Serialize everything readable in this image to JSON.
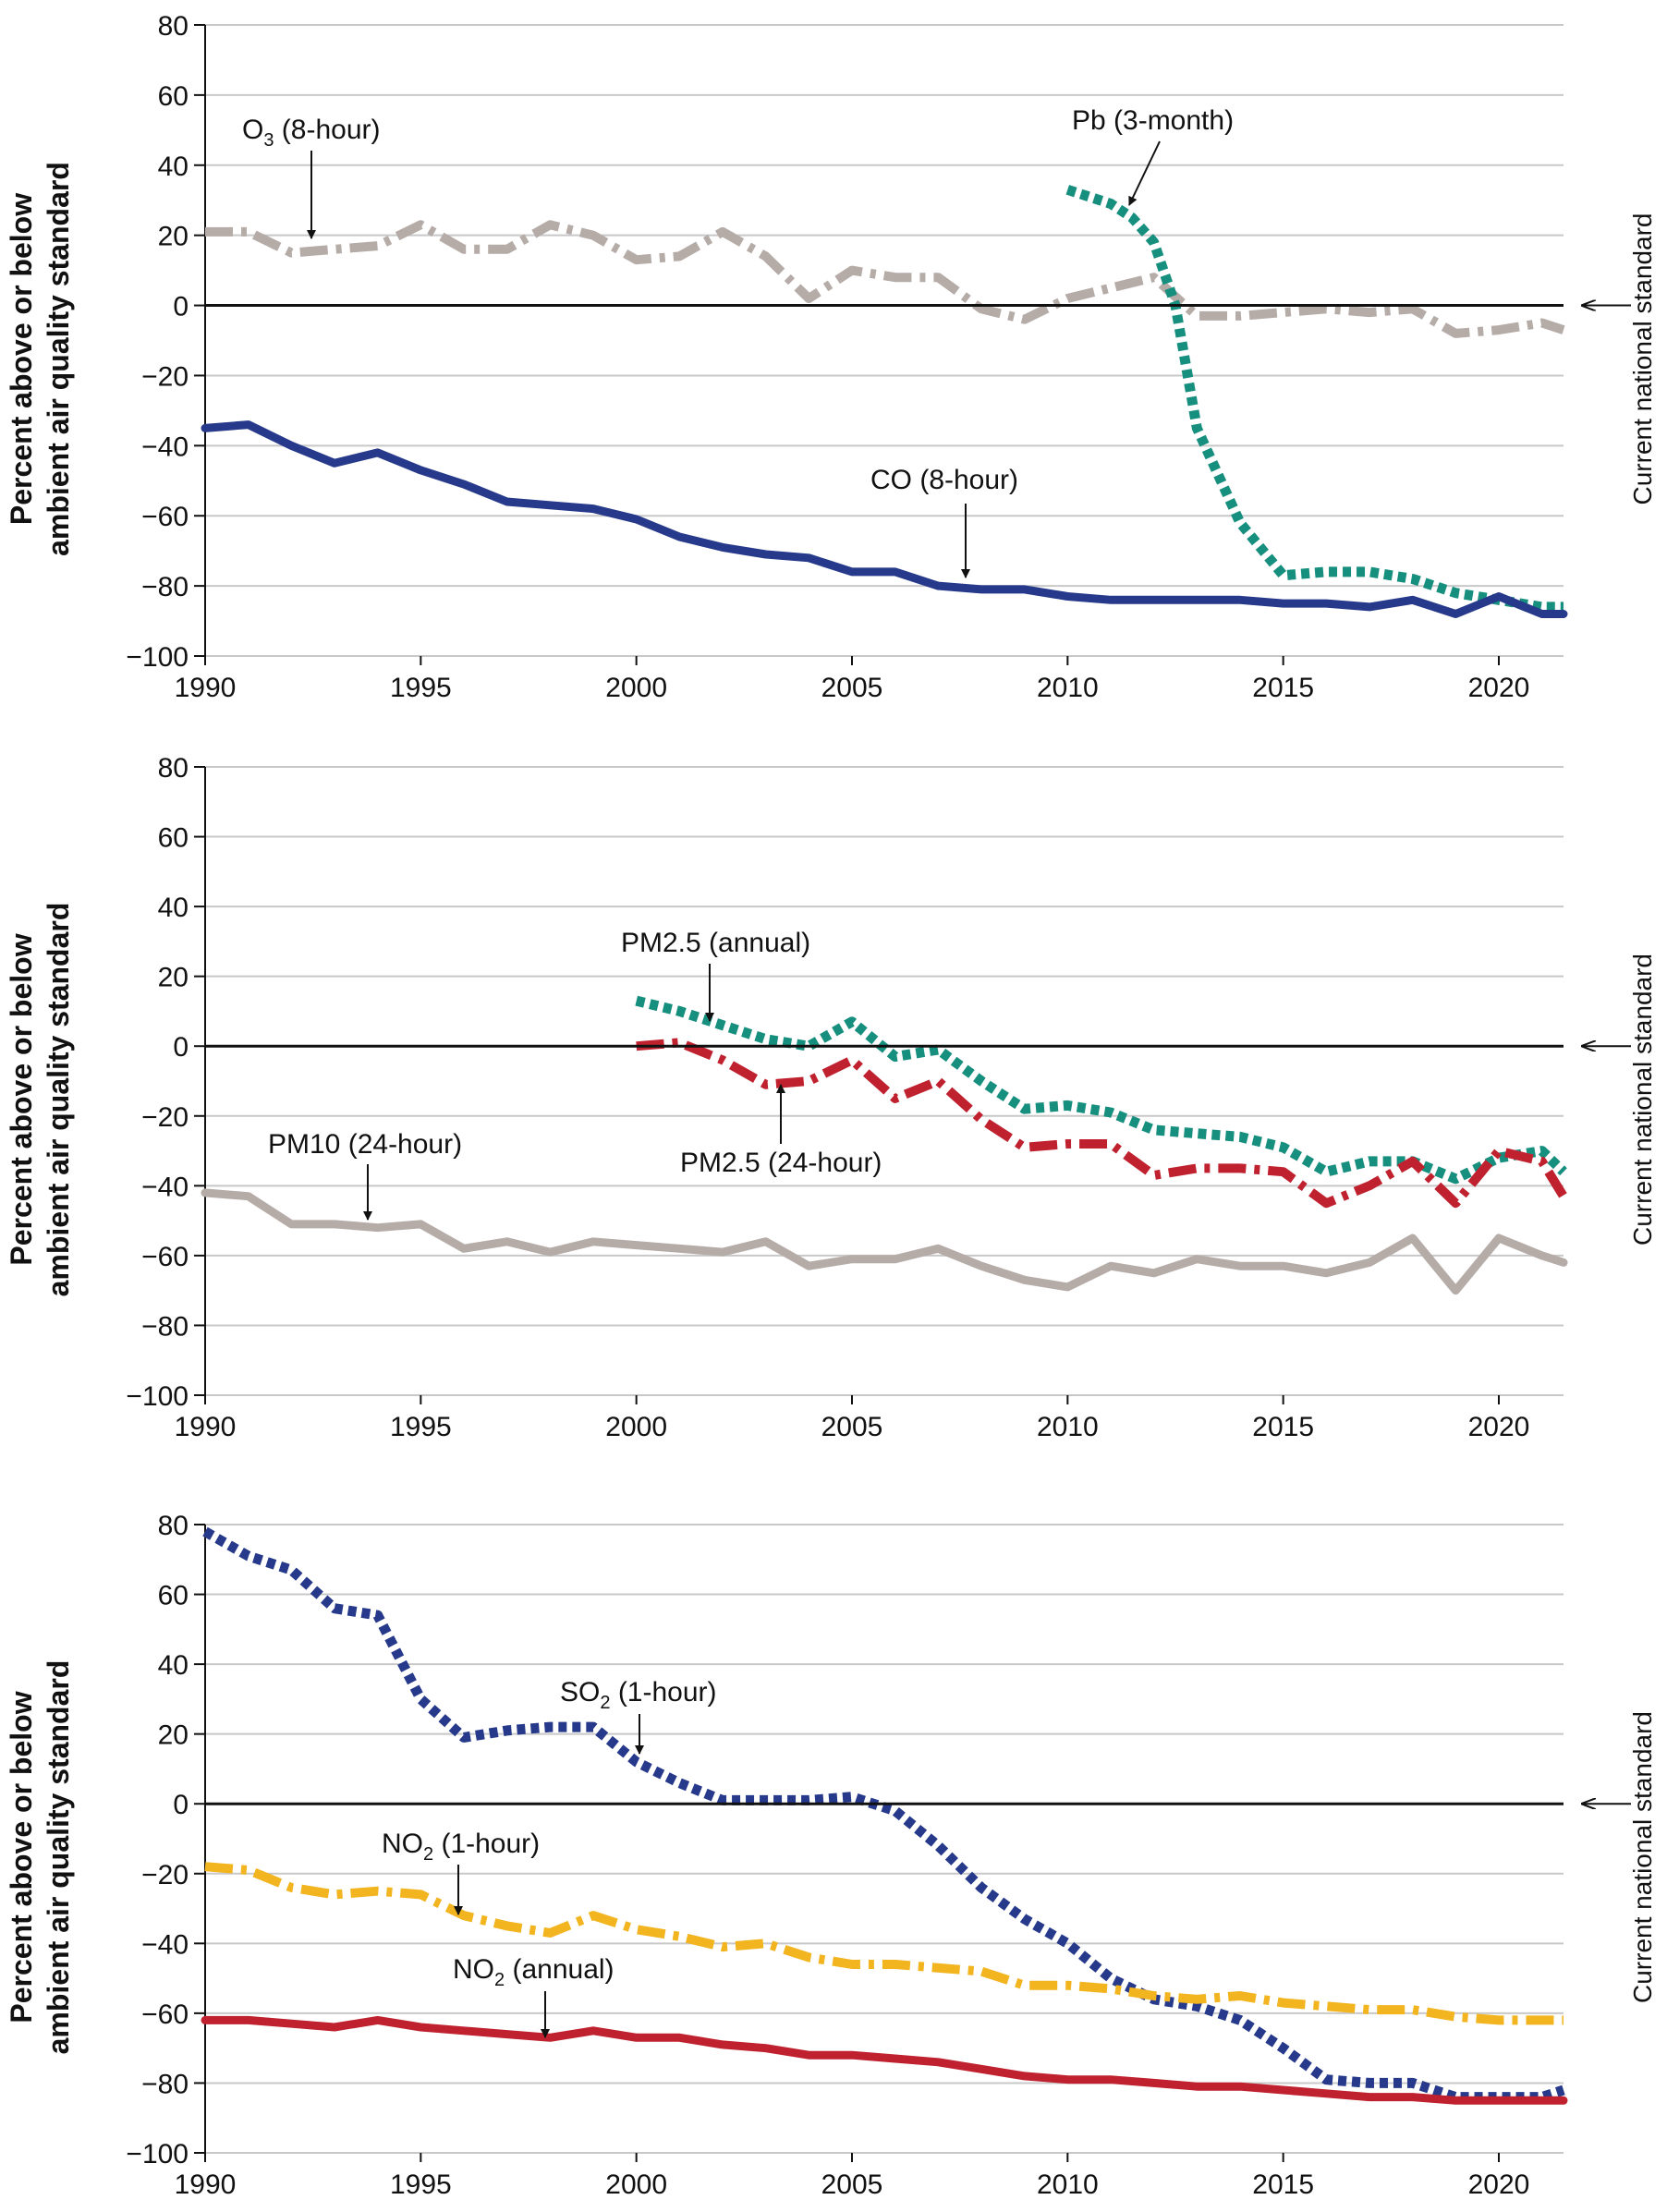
{
  "y_axis_label": [
    "Percent above or below",
    "ambient air quality standard"
  ],
  "standard_label": "Current national standard",
  "chart_data": [
    {
      "type": "line",
      "xlim": [
        1990,
        2021.5
      ],
      "ylim": [
        -100,
        80
      ],
      "x_ticks": [
        1990,
        1995,
        2000,
        2005,
        2010,
        2015,
        2020
      ],
      "y_ticks": [
        80,
        60,
        40,
        20,
        0,
        -20,
        -40,
        -60,
        -80,
        -100
      ],
      "grid": "horizontal",
      "reference_line": 0,
      "series": [
        {
          "id": "o3",
          "style": "dashdot",
          "color": "#b5aca8",
          "x": [
            1990,
            1991,
            1992,
            1993,
            1994,
            1995,
            1996,
            1997,
            1998,
            1999,
            2000,
            2001,
            2002,
            2003,
            2004,
            2005,
            2006,
            2007,
            2008,
            2009,
            2010,
            2011,
            2012,
            2013,
            2014,
            2015,
            2016,
            2017,
            2018,
            2019,
            2020,
            2021,
            2021.5
          ],
          "values": [
            21,
            21,
            15,
            16,
            17,
            23,
            16,
            16,
            23,
            20,
            13,
            14,
            21,
            14,
            2,
            10,
            8,
            8,
            -1,
            -4,
            2,
            5,
            8,
            -3,
            -3,
            -2,
            -1,
            -2,
            -1,
            -8,
            -7,
            -5,
            -7
          ]
        },
        {
          "id": "pb",
          "style": "dotted",
          "color": "#178f7e",
          "x": [
            2010,
            2011,
            2011.5,
            2012,
            2012.5,
            2013,
            2014,
            2015,
            2016,
            2017,
            2018,
            2019,
            2020,
            2021,
            2021.5
          ],
          "values": [
            33,
            29,
            25,
            18,
            0,
            -35,
            -62,
            -77,
            -76,
            -76,
            -78,
            -82,
            -84,
            -86,
            -86
          ]
        },
        {
          "id": "co",
          "style": "solid",
          "color": "#26398a",
          "x": [
            1990,
            1991,
            1992,
            1993,
            1994,
            1995,
            1996,
            1997,
            1998,
            1999,
            2000,
            2001,
            2002,
            2003,
            2004,
            2005,
            2006,
            2007,
            2008,
            2009,
            2010,
            2011,
            2012,
            2013,
            2014,
            2015,
            2016,
            2017,
            2018,
            2019,
            2020,
            2021,
            2021.5
          ],
          "values": [
            -35,
            -34,
            -40,
            -45,
            -42,
            -47,
            -51,
            -56,
            -57,
            -58,
            -61,
            -66,
            -69,
            -71,
            -72,
            -76,
            -76,
            -80,
            -81,
            -81,
            -83,
            -84,
            -84,
            -84,
            -84,
            -85,
            -85,
            -86,
            -84,
            -88,
            -83,
            -88,
            -88
          ]
        }
      ],
      "annotations": [
        {
          "text": "O",
          "sub": "3",
          "rest": " (8-hour)",
          "ann_id": "o3"
        },
        {
          "text": "Pb (3-month)",
          "ann_id": "pb"
        },
        {
          "text": "CO (8-hour)",
          "ann_id": "co"
        }
      ]
    },
    {
      "type": "line",
      "xlim": [
        1990,
        2021.5
      ],
      "ylim": [
        -100,
        80
      ],
      "x_ticks": [
        1990,
        1995,
        2000,
        2005,
        2010,
        2015,
        2020
      ],
      "y_ticks": [
        80,
        60,
        40,
        20,
        0,
        -20,
        -40,
        -60,
        -80,
        -100
      ],
      "grid": "horizontal",
      "reference_line": 0,
      "series": [
        {
          "id": "pm25a",
          "style": "dotted",
          "color": "#178f7e",
          "x": [
            2000,
            2001,
            2002,
            2003,
            2004,
            2005,
            2006,
            2007,
            2008,
            2009,
            2010,
            2011,
            2012,
            2013,
            2014,
            2015,
            2016,
            2017,
            2018,
            2019,
            2020,
            2021,
            2021.5
          ],
          "values": [
            13,
            10,
            6,
            2,
            0,
            7,
            -3,
            -1,
            -10,
            -18,
            -17,
            -19,
            -24,
            -25,
            -26,
            -29,
            -36,
            -33,
            -33,
            -38,
            -32,
            -30,
            -36
          ]
        },
        {
          "id": "pm25d",
          "style": "dashdot",
          "color": "#c0212f",
          "x": [
            2000,
            2001,
            2002,
            2003,
            2004,
            2005,
            2006,
            2007,
            2008,
            2009,
            2010,
            2011,
            2012,
            2013,
            2014,
            2015,
            2016,
            2017,
            2018,
            2019,
            2020,
            2021,
            2021.5
          ],
          "values": [
            0,
            1,
            -4,
            -11,
            -10,
            -4,
            -15,
            -10,
            -21,
            -29,
            -28,
            -28,
            -37,
            -35,
            -35,
            -36,
            -45,
            -40,
            -33,
            -45,
            -30,
            -33,
            -43
          ]
        },
        {
          "id": "pm10",
          "style": "solid",
          "color": "#b5aca8",
          "x": [
            1990,
            1991,
            1992,
            1993,
            1994,
            1995,
            1996,
            1997,
            1998,
            1999,
            2000,
            2001,
            2002,
            2003,
            2004,
            2005,
            2006,
            2007,
            2008,
            2009,
            2010,
            2011,
            2012,
            2013,
            2014,
            2015,
            2016,
            2017,
            2018,
            2019,
            2020,
            2021,
            2021.5
          ],
          "values": [
            -42,
            -43,
            -51,
            -51,
            -52,
            -51,
            -58,
            -56,
            -59,
            -56,
            -57,
            -58,
            -59,
            -56,
            -63,
            -61,
            -61,
            -58,
            -63,
            -67,
            -69,
            -63,
            -65,
            -61,
            -63,
            -63,
            -65,
            -62,
            -55,
            -70,
            -55,
            -60,
            -62
          ]
        }
      ],
      "annotations": [
        {
          "text": "PM2.5 (annual)",
          "ann_id": "pm25a"
        },
        {
          "text": "PM2.5 (24-hour)",
          "ann_id": "pm25d"
        },
        {
          "text": "PM10 (24-hour)",
          "ann_id": "pm10"
        }
      ]
    },
    {
      "type": "line",
      "xlim": [
        1990,
        2021.5
      ],
      "ylim": [
        -100,
        80
      ],
      "x_ticks": [
        1990,
        1995,
        2000,
        2005,
        2010,
        2015,
        2020
      ],
      "y_ticks": [
        80,
        60,
        40,
        20,
        0,
        -20,
        -40,
        -60,
        -80,
        -100
      ],
      "grid": "horizontal",
      "reference_line": 0,
      "series": [
        {
          "id": "so2",
          "style": "dotted",
          "color": "#26398a",
          "x": [
            1990,
            1991,
            1992,
            1993,
            1994,
            1995,
            1996,
            1997,
            1998,
            1999,
            2000,
            2001,
            2002,
            2003,
            2004,
            2005,
            2006,
            2007,
            2008,
            2009,
            2010,
            2011,
            2012,
            2013,
            2014,
            2015,
            2016,
            2017,
            2018,
            2019,
            2020,
            2021,
            2021.5
          ],
          "values": [
            78,
            71,
            67,
            56,
            54,
            30,
            19,
            21,
            22,
            22,
            12,
            6,
            1,
            1,
            1,
            2,
            -2,
            -12,
            -24,
            -33,
            -40,
            -50,
            -56,
            -58,
            -62,
            -70,
            -79,
            -80,
            -80,
            -84,
            -84,
            -84,
            -82
          ]
        },
        {
          "id": "no2h",
          "style": "dashdot",
          "color": "#f2b41f",
          "x": [
            1990,
            1991,
            1992,
            1993,
            1994,
            1995,
            1996,
            1997,
            1998,
            1999,
            2000,
            2001,
            2002,
            2003,
            2004,
            2005,
            2006,
            2007,
            2008,
            2009,
            2010,
            2011,
            2012,
            2013,
            2014,
            2015,
            2016,
            2017,
            2018,
            2019,
            2020,
            2021,
            2021.5
          ],
          "values": [
            -18,
            -19,
            -24,
            -26,
            -25,
            -26,
            -32,
            -35,
            -37,
            -32,
            -36,
            -38,
            -41,
            -40,
            -44,
            -46,
            -46,
            -47,
            -48,
            -52,
            -52,
            -53,
            -55,
            -56,
            -55,
            -57,
            -58,
            -59,
            -59,
            -61,
            -62,
            -62,
            -62
          ]
        },
        {
          "id": "no2a",
          "style": "solid",
          "color": "#c0212f",
          "x": [
            1990,
            1991,
            1992,
            1993,
            1994,
            1995,
            1996,
            1997,
            1998,
            1999,
            2000,
            2001,
            2002,
            2003,
            2004,
            2005,
            2006,
            2007,
            2008,
            2009,
            2010,
            2011,
            2012,
            2013,
            2014,
            2015,
            2016,
            2017,
            2018,
            2019,
            2020,
            2021,
            2021.5
          ],
          "values": [
            -62,
            -62,
            -63,
            -64,
            -62,
            -64,
            -65,
            -66,
            -67,
            -65,
            -67,
            -67,
            -69,
            -70,
            -72,
            -72,
            -73,
            -74,
            -76,
            -78,
            -79,
            -79,
            -80,
            -81,
            -81,
            -82,
            -83,
            -84,
            -84,
            -85,
            -85,
            -85,
            -85
          ]
        }
      ],
      "annotations": [
        {
          "text": "SO",
          "sub": "2",
          "rest": " (1-hour)",
          "ann_id": "so2"
        },
        {
          "text": "NO",
          "sub": "2",
          "rest": " (1-hour)",
          "ann_id": "no2h"
        },
        {
          "text": "NO",
          "sub": "2",
          "rest": " (annual)",
          "ann_id": "no2a"
        }
      ]
    }
  ]
}
